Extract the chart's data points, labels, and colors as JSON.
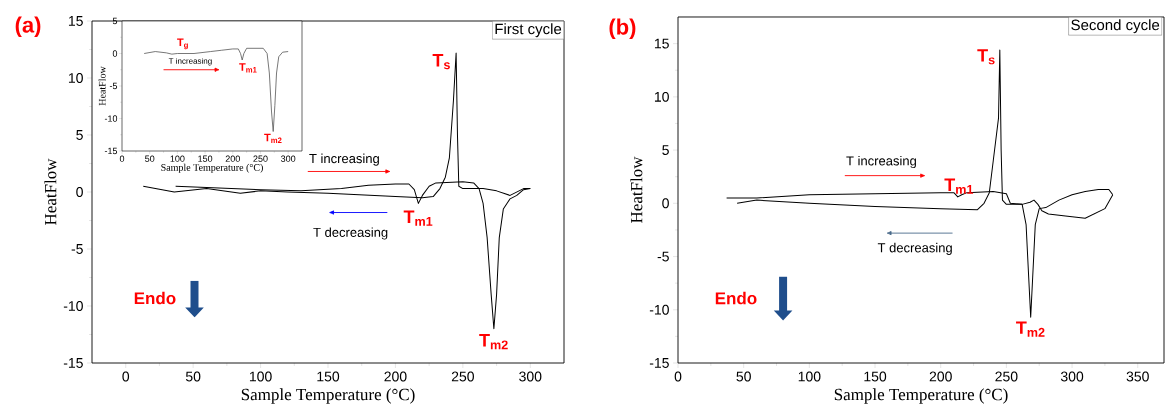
{
  "chart_data": [
    {
      "type": "line",
      "title": "(a)",
      "xlabel": "Sample Temperature (°C)",
      "ylabel": "HeatFlow",
      "xlim": [
        -25,
        325
      ],
      "ylim": [
        -15,
        15
      ],
      "xticks": [
        0,
        50,
        100,
        150,
        200,
        250,
        300
      ],
      "yticks": [
        -15,
        -10,
        -5,
        0,
        5,
        10,
        15
      ],
      "series": [
        {
          "color": "#000000",
          "x": [
            37,
            60,
            100,
            130,
            160,
            180,
            200,
            210,
            214,
            217,
            220,
            225,
            230,
            250,
            258,
            262,
            265,
            268,
            271,
            273,
            275,
            277,
            280,
            285,
            290,
            295,
            300
          ],
          "values": [
            0.5,
            0.4,
            0.2,
            0.1,
            0.3,
            0.6,
            0.7,
            0.7,
            0.2,
            -1,
            -0.3,
            0.5,
            0.8,
            0.9,
            0.8,
            0.3,
            -1,
            -4,
            -9,
            -12,
            -9,
            -4,
            -1.5,
            -0.6,
            -0.3,
            0.2,
            0.3
          ]
        },
        {
          "color": "#000000",
          "x": [
            300,
            295,
            285,
            275,
            265,
            250,
            247,
            246,
            245,
            243,
            240,
            237,
            233,
            228,
            220,
            200,
            150,
            120,
            100,
            85,
            60,
            36,
            13
          ],
          "values": [
            0.3,
            0.3,
            -0.3,
            0.1,
            0.3,
            0.3,
            0.5,
            5,
            12.2,
            8,
            3,
            1.3,
            0.3,
            -0.4,
            -0.5,
            -0.4,
            -0.1,
            0,
            0.1,
            -0.1,
            0.3,
            0,
            0.5
          ]
        }
      ],
      "annotations": [
        "First cycle",
        {
          "text": "T$_{s}$",
          "x": 245,
          "y": 12.2
        },
        {
          "text": "T$_{m1}$",
          "x": 217,
          "y": -1
        },
        {
          "text": "T$_{m2}$",
          "x": 273,
          "y": -12
        },
        "T increasing",
        "T decreasing",
        "Endo"
      ]
    },
    {
      "type": "line",
      "xlabel": "Sample Temperature (°C)",
      "ylabel": "HeatFlow",
      "xlim": [
        0,
        325
      ],
      "ylim": [
        -15,
        5
      ],
      "xticks": [
        0,
        50,
        100,
        150,
        200,
        250,
        300
      ],
      "yticks": [
        -15,
        -10,
        -5,
        0,
        5
      ],
      "series": [
        {
          "color": "#555555",
          "x": [
            40,
            60,
            80,
            90,
            100,
            130,
            160,
            180,
            200,
            210,
            214,
            217,
            220,
            225,
            255,
            262,
            266,
            270,
            273,
            276,
            279,
            283,
            290,
            300
          ],
          "values": [
            0,
            0.3,
            0.1,
            -0.1,
            0,
            0,
            0.3,
            0.5,
            0.7,
            0.7,
            0,
            -1,
            0,
            0.8,
            0.8,
            0,
            -3,
            -9,
            -12,
            -8,
            -3,
            -0.5,
            0.2,
            0.3
          ]
        }
      ],
      "annotations": [
        {
          "text": "T$_{g}$",
          "x": 110,
          "y": 0
        },
        "T increasing",
        {
          "text": "T$_{m1}$",
          "x": 217,
          "y": -1
        },
        {
          "text": "T$_{m2}$",
          "x": 273,
          "y": -12
        }
      ]
    },
    {
      "type": "line",
      "title": "(b)",
      "xlabel": "Sample Temperature (°C)",
      "ylabel": "HeatFlow",
      "xlim": [
        0,
        370
      ],
      "ylim": [
        -15,
        17.5
      ],
      "xticks": [
        0,
        50,
        100,
        150,
        200,
        250,
        300,
        350
      ],
      "yticks": [
        -15,
        -10,
        -5,
        0,
        5,
        10,
        15
      ],
      "series": [
        {
          "color": "#000000",
          "x": [
            37,
            60,
            100,
            150,
            200,
            210,
            213,
            216,
            220,
            240,
            250,
            253,
            262,
            265,
            267,
            268.5,
            270,
            272,
            275,
            280,
            290,
            300,
            310,
            320,
            328,
            331
          ],
          "values": [
            0.5,
            0.5,
            0.8,
            0.9,
            1.0,
            1.0,
            0.6,
            0.8,
            1.0,
            1.1,
            0.9,
            0,
            -0.1,
            -2,
            -7,
            -10.7,
            -7,
            -2,
            -0.5,
            -0.4,
            0.3,
            0.8,
            1.1,
            1.3,
            1.3,
            0.8
          ]
        },
        {
          "color": "#000000",
          "x": [
            331,
            325,
            310,
            295,
            282,
            277,
            274,
            271,
            268,
            262,
            250,
            247,
            246,
            245,
            244,
            242,
            240,
            237,
            233,
            228,
            200,
            150,
            100,
            60,
            45
          ],
          "values": [
            0.8,
            -0.5,
            -1.4,
            -1.2,
            -1.0,
            -0.7,
            -0.1,
            0.3,
            0.1,
            -0.1,
            -0.1,
            0.3,
            5,
            14.4,
            8,
            6,
            4,
            1,
            0,
            -0.6,
            -0.5,
            -0.3,
            0,
            0.3,
            0
          ]
        }
      ],
      "annotations": [
        "Second cycle",
        {
          "text": "T$_{s}$",
          "x": 245,
          "y": 14.4
        },
        {
          "text": "T$_{m1}$",
          "x": 214,
          "y": 0.6
        },
        {
          "text": "T$_{m2}$",
          "x": 268.5,
          "y": -10.7
        },
        "T increasing",
        "T decreasing",
        "Endo"
      ]
    }
  ]
}
